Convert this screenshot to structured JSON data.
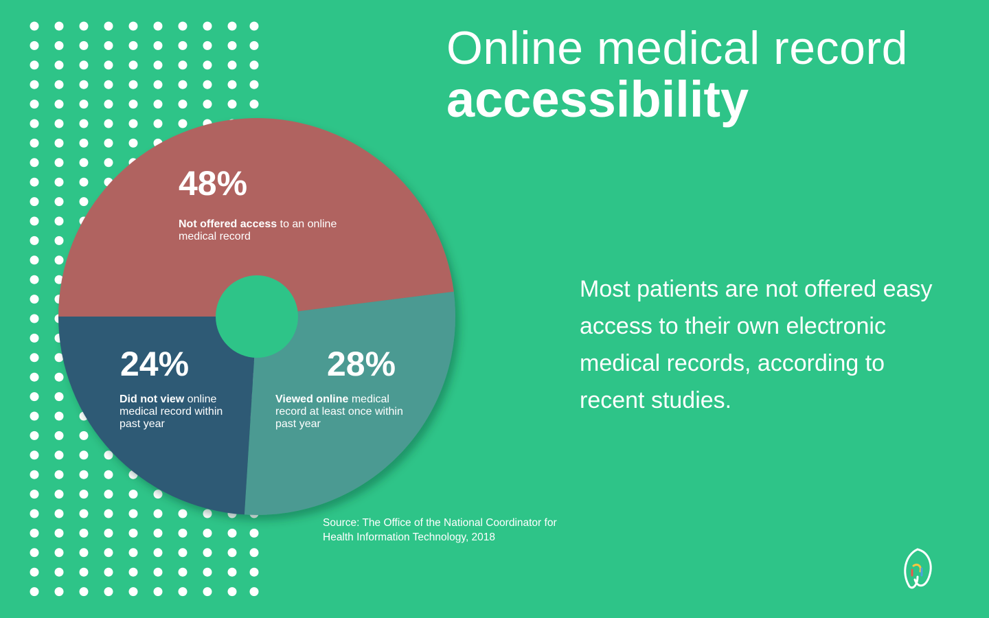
{
  "title": {
    "line1": "Online medical record",
    "line2": "accessibility"
  },
  "summary": "Most patients are not offered easy access to their own electronic medical records, according to recent studies.",
  "source": {
    "line1": "Source: The Office of the National Coordinator for",
    "line2": "Health Information Technology, 2018"
  },
  "chart_data": {
    "type": "pie",
    "title": "Online medical record accessibility",
    "slices": [
      {
        "percent_label": "48%",
        "value": 48,
        "label_bold": "Not offered access",
        "label_rest": " to an online medical record",
        "color": "#b06360"
      },
      {
        "percent_label": "28%",
        "value": 28,
        "label_bold": "Viewed online",
        "label_rest": " medical record at least once within past year",
        "color": "#4c9a92"
      },
      {
        "percent_label": "24%",
        "value": 24,
        "label_bold": "Did not view",
        "label_rest": " online medical record within past year",
        "color": "#2d5a75"
      }
    ]
  },
  "colors": {
    "background": "#2ec488",
    "dots": "#ffffff",
    "text": "#ffffff"
  },
  "logo": {
    "icon": "brand-logo-icon"
  }
}
